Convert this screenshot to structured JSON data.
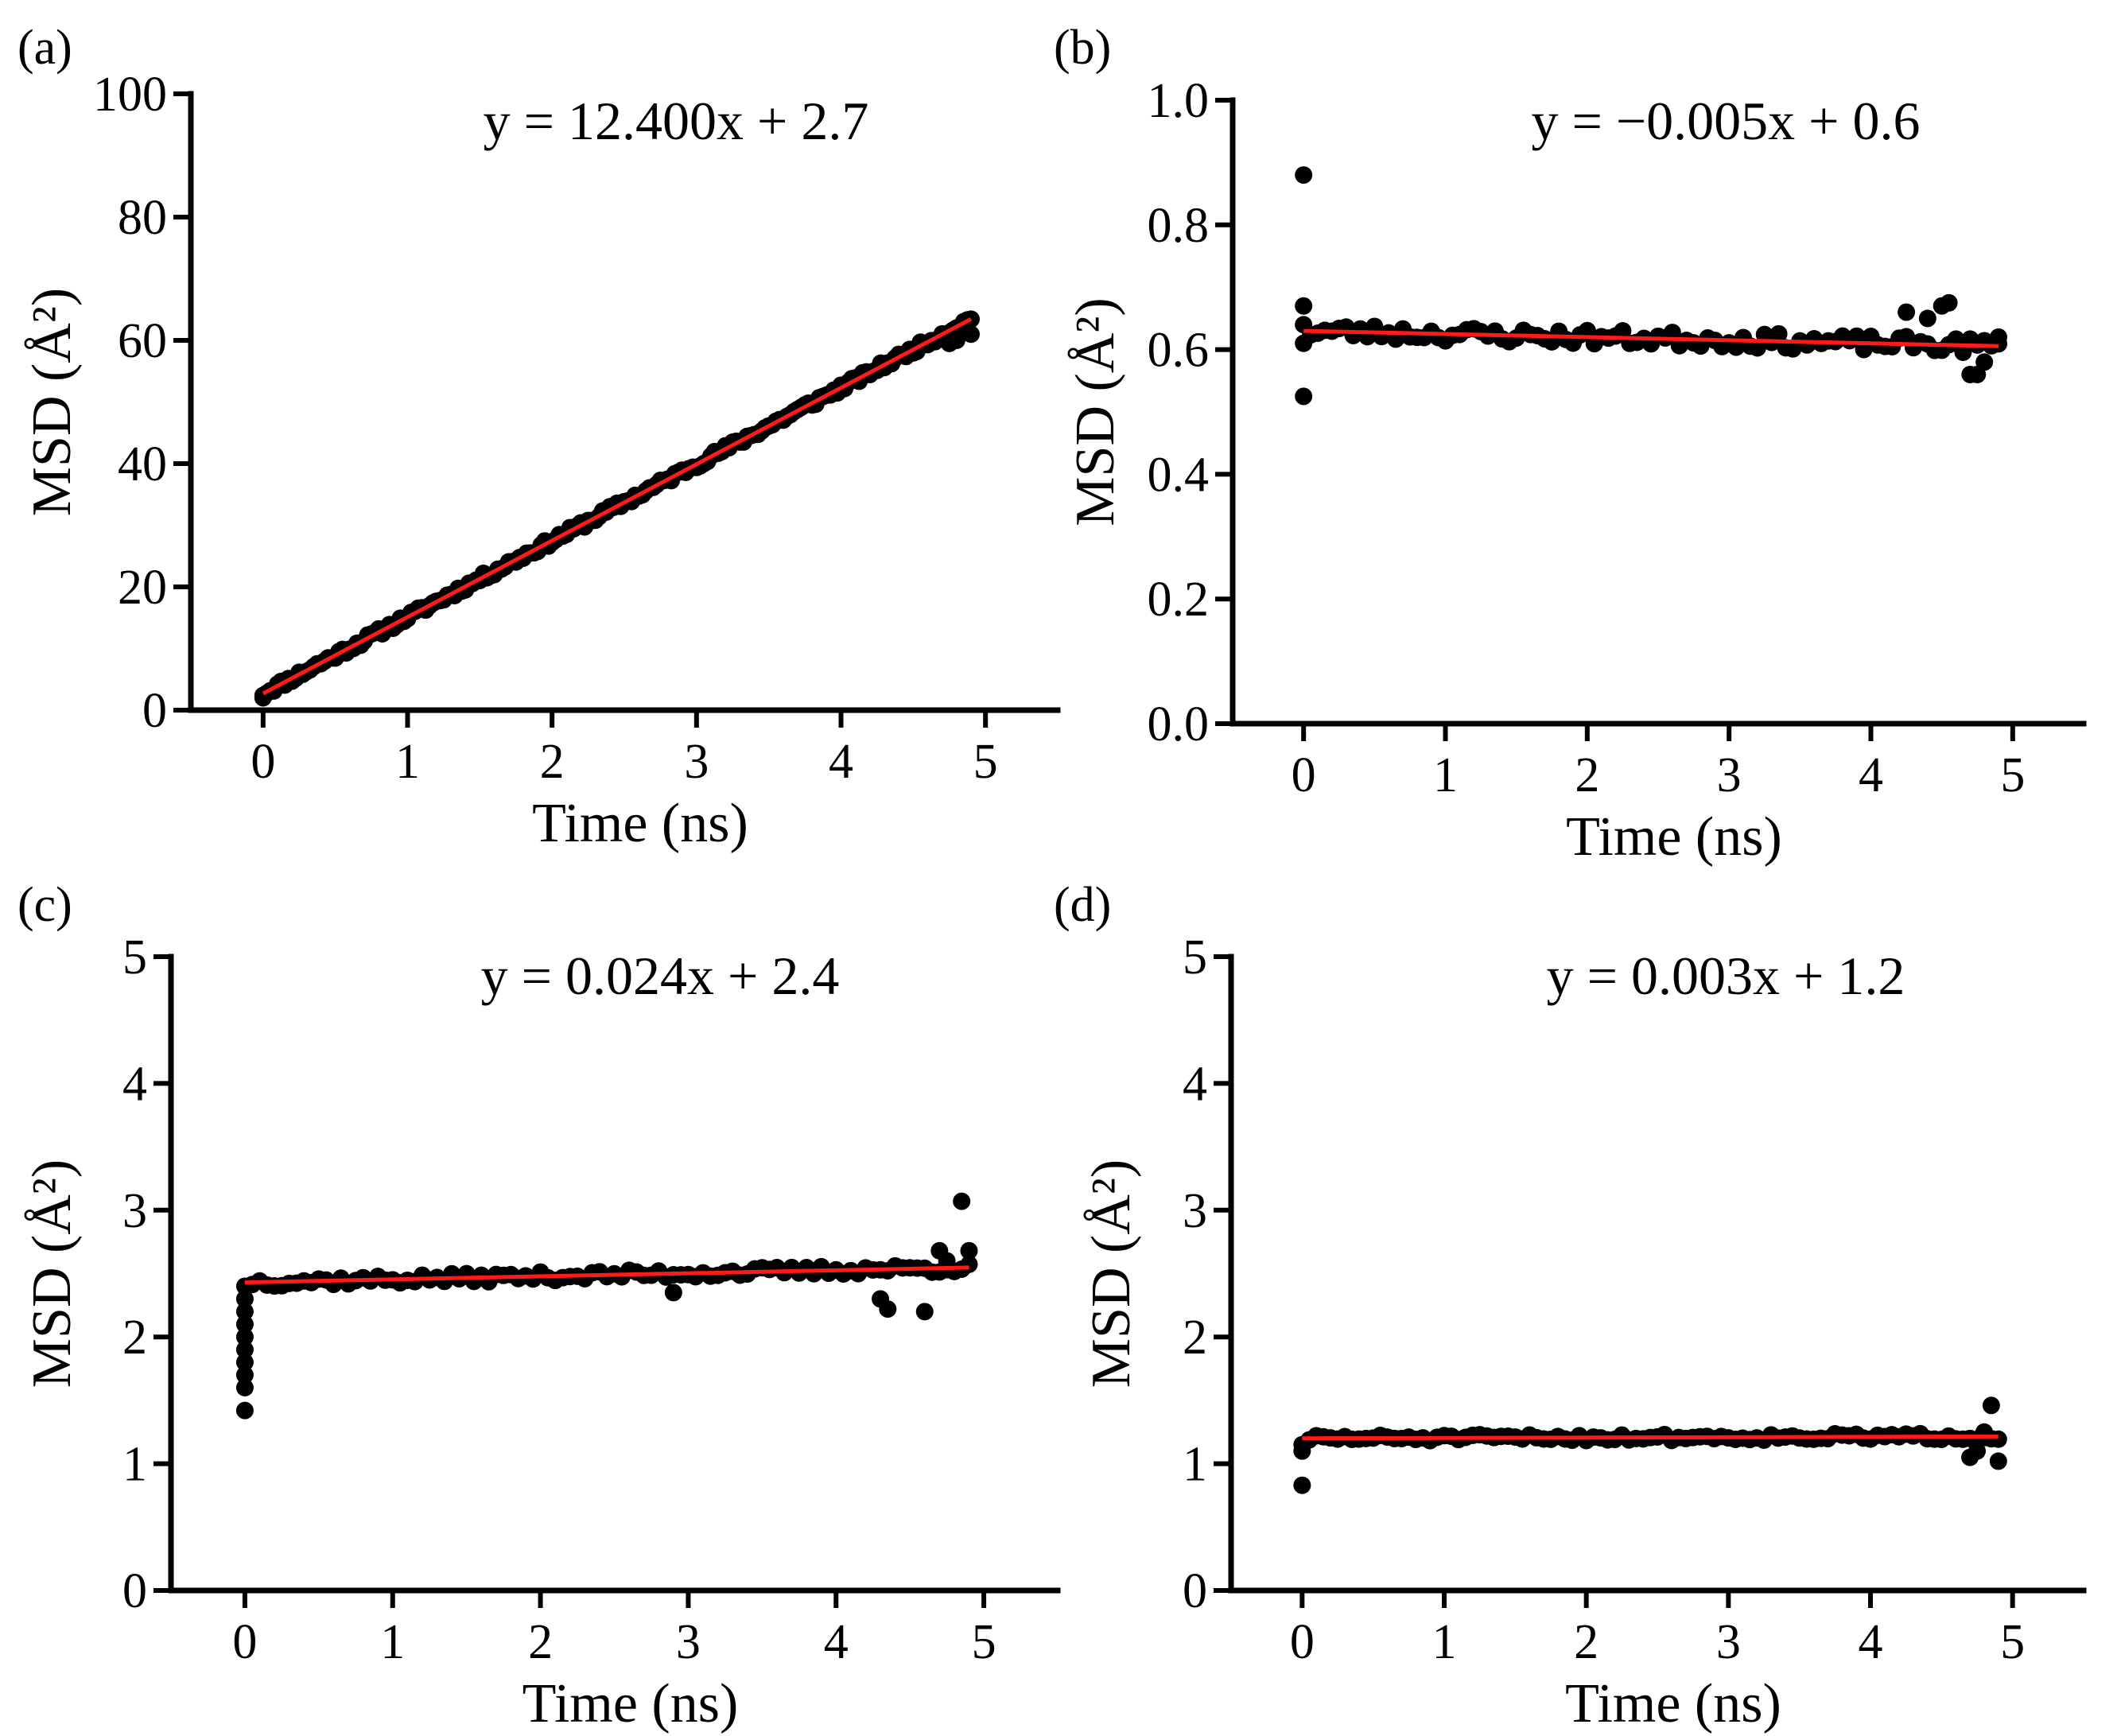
{
  "figure": {
    "panel_labels": [
      "(a)",
      "(b)",
      "(c)",
      "(d)"
    ]
  },
  "colors": {
    "points": "#000000",
    "fit": "#ff1a1a",
    "axes": "#000000"
  },
  "chart_data": [
    {
      "id": "a",
      "type": "scatter",
      "label": "(a)",
      "equation": "y = 12.400x + 2.7",
      "xlabel": "Time (ns)",
      "ylabel": "MSD (Å²)",
      "xlim": [
        -0.5,
        5.5
      ],
      "ylim": [
        0,
        100
      ],
      "xticks": [
        0,
        1,
        2,
        3,
        4,
        5
      ],
      "xticklabels": [
        "0",
        "1",
        "2",
        "3",
        "4",
        "5"
      ],
      "yticks": [
        0,
        20,
        40,
        60,
        80,
        100
      ],
      "yticklabels": [
        "0",
        "20",
        "40",
        "60",
        "80",
        "100"
      ],
      "fit": {
        "slope": 12.4,
        "intercept": 2.7,
        "x": [
          0,
          4.9
        ]
      },
      "points_generator": {
        "x_start": 0,
        "x_end": 4.9,
        "step": 0.025,
        "noise": 0.6,
        "seed": 11
      },
      "outliers": [
        {
          "x": 0,
          "y": 2.0
        },
        {
          "x": 4.75,
          "y": 59.5
        },
        {
          "x": 4.8,
          "y": 60.0
        },
        {
          "x": 4.9,
          "y": 61.0
        }
      ]
    },
    {
      "id": "b",
      "type": "scatter",
      "label": "(b)",
      "equation": "y = −0.005x + 0.6",
      "xlabel": "Time (ns)",
      "ylabel": "MSD (Å²)",
      "xlim": [
        -0.5,
        5.5
      ],
      "ylim": [
        0,
        1.0
      ],
      "xticks": [
        0,
        1,
        2,
        3,
        4,
        5
      ],
      "xticklabels": [
        "0",
        "1",
        "2",
        "3",
        "4",
        "5"
      ],
      "yticks": [
        0,
        0.2,
        0.4,
        0.6,
        0.8,
        1.0
      ],
      "yticklabels": [
        "0.0",
        "0.2",
        "0.4",
        "0.6",
        "0.8",
        "1.0"
      ],
      "fit": {
        "slope": -0.005,
        "intercept": 0.63,
        "x": [
          0,
          4.9
        ]
      },
      "points_generator": {
        "x_start": 0.05,
        "x_end": 4.9,
        "step": 0.05,
        "noise": 0.012,
        "seed": 23
      },
      "outliers": [
        {
          "x": 0,
          "y": 0.88
        },
        {
          "x": 0,
          "y": 0.67
        },
        {
          "x": 0,
          "y": 0.64
        },
        {
          "x": 0,
          "y": 0.61
        },
        {
          "x": 0,
          "y": 0.525
        },
        {
          "x": 4.25,
          "y": 0.66
        },
        {
          "x": 4.4,
          "y": 0.65
        },
        {
          "x": 4.5,
          "y": 0.67
        },
        {
          "x": 4.55,
          "y": 0.675
        },
        {
          "x": 4.7,
          "y": 0.56
        },
        {
          "x": 4.75,
          "y": 0.56
        },
        {
          "x": 4.8,
          "y": 0.58
        },
        {
          "x": 4.9,
          "y": 0.62
        }
      ]
    },
    {
      "id": "c",
      "type": "scatter",
      "label": "(c)",
      "equation": "y = 0.024x + 2.4",
      "xlabel": "Time (ns)",
      "ylabel": "MSD (Å²)",
      "xlim": [
        -0.5,
        5.5
      ],
      "ylim": [
        0,
        5
      ],
      "xticks": [
        0,
        1,
        2,
        3,
        4,
        5
      ],
      "xticklabels": [
        "0",
        "1",
        "2",
        "3",
        "4",
        "5"
      ],
      "yticks": [
        0,
        1,
        2,
        3,
        4,
        5
      ],
      "yticklabels": [
        "0",
        "1",
        "2",
        "3",
        "4",
        "5"
      ],
      "fit": {
        "slope": 0.024,
        "intercept": 2.43,
        "x": [
          0,
          4.9
        ]
      },
      "points_generator": {
        "x_start": 0.05,
        "x_end": 4.9,
        "step": 0.05,
        "noise": 0.035,
        "seed": 37
      },
      "outliers": [
        {
          "x": 0,
          "y": 1.42
        },
        {
          "x": 0,
          "y": 1.6
        },
        {
          "x": 0,
          "y": 1.7
        },
        {
          "x": 0,
          "y": 1.8
        },
        {
          "x": 0,
          "y": 1.9
        },
        {
          "x": 0,
          "y": 2.0
        },
        {
          "x": 0,
          "y": 2.1
        },
        {
          "x": 0,
          "y": 2.2
        },
        {
          "x": 0,
          "y": 2.3
        },
        {
          "x": 0,
          "y": 2.4
        },
        {
          "x": 2.9,
          "y": 2.35
        },
        {
          "x": 4.3,
          "y": 2.3
        },
        {
          "x": 4.35,
          "y": 2.22
        },
        {
          "x": 4.6,
          "y": 2.2
        },
        {
          "x": 4.7,
          "y": 2.68
        },
        {
          "x": 4.75,
          "y": 2.6
        },
        {
          "x": 4.85,
          "y": 3.07
        },
        {
          "x": 4.9,
          "y": 2.68
        }
      ]
    },
    {
      "id": "d",
      "type": "scatter",
      "label": "(d)",
      "equation": "y = 0.003x + 1.2",
      "xlabel": "Time (ns)",
      "ylabel": "MSD (Å²)",
      "xlim": [
        -0.5,
        5.5
      ],
      "ylim": [
        0,
        5
      ],
      "xticks": [
        0,
        1,
        2,
        3,
        4,
        5
      ],
      "xticklabels": [
        "0",
        "1",
        "2",
        "3",
        "4",
        "5"
      ],
      "yticks": [
        0,
        1,
        2,
        3,
        4,
        5
      ],
      "yticklabels": [
        "0",
        "1",
        "2",
        "3",
        "4",
        "5"
      ],
      "fit": {
        "slope": 0.003,
        "intercept": 1.2,
        "x": [
          0,
          4.9
        ]
      },
      "points_generator": {
        "x_start": 0.05,
        "x_end": 4.9,
        "step": 0.05,
        "noise": 0.025,
        "seed": 51
      },
      "outliers": [
        {
          "x": 0,
          "y": 0.83
        },
        {
          "x": 0,
          "y": 1.1
        },
        {
          "x": 0,
          "y": 1.15
        },
        {
          "x": 4.7,
          "y": 1.05
        },
        {
          "x": 4.75,
          "y": 1.1
        },
        {
          "x": 4.8,
          "y": 1.25
        },
        {
          "x": 4.85,
          "y": 1.46
        },
        {
          "x": 4.9,
          "y": 1.02
        }
      ]
    }
  ]
}
